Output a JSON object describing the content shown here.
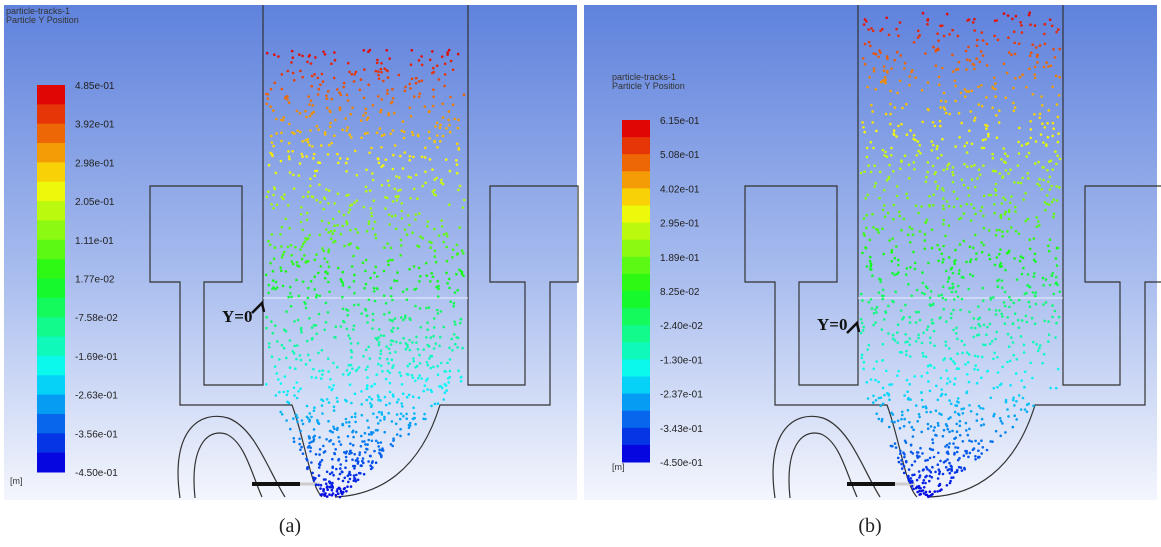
{
  "panels": [
    {
      "title": "particle-tracks-1",
      "subtitle": "Particle Y Position",
      "colorbar_labels": [
        "4.85e-01",
        "3.92e-01",
        "2.98e-01",
        "2.05e-01",
        "1.11e-01",
        "1.77e-02",
        "-7.58e-02",
        "-1.69e-01",
        "-2.63e-01",
        "-3.56e-01",
        "-4.50e-01"
      ],
      "unit": "[m]",
      "marker": "Y=0",
      "caption": "(a)"
    },
    {
      "title": "particle-tracks-1",
      "subtitle": "Particle Y Position",
      "colorbar_labels": [
        "6.15e-01",
        "5.08e-01",
        "4.02e-01",
        "2.95e-01",
        "1.89e-01",
        "8.25e-02",
        "-2.40e-02",
        "-1.30e-01",
        "-2.37e-01",
        "-3.43e-01",
        "-4.50e-01"
      ],
      "unit": "[m]",
      "marker": "Y=0",
      "caption": "(b)"
    }
  ]
}
